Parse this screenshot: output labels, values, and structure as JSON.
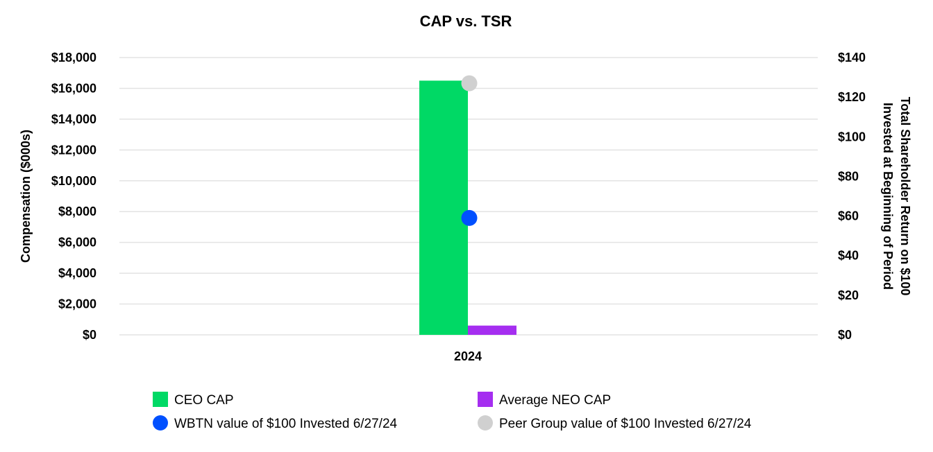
{
  "chart_data": {
    "type": "bar",
    "title": "CAP vs. TSR",
    "categories": [
      "2024"
    ],
    "ylabel": "Compensation ($000s)",
    "ylabel_right": [
      "Total Shareholder Return on $100",
      "Invested at Beginning of Period"
    ],
    "ylim": [
      0,
      18000
    ],
    "ylim_right": [
      0,
      140
    ],
    "y_ticks": [
      "$0",
      "$2,000",
      "$4,000",
      "$6,000",
      "$8,000",
      "$10,000",
      "$12,000",
      "$14,000",
      "$16,000",
      "$18,000"
    ],
    "y_ticks_right": [
      "$0",
      "$20",
      "$40",
      "$60",
      "$80",
      "$100",
      "$120",
      "$140"
    ],
    "grid": true,
    "legend_position": "bottom",
    "series": [
      {
        "name": "CEO CAP",
        "kind": "bar",
        "axis": "left",
        "color": "#00d965",
        "values": [
          16500
        ]
      },
      {
        "name": "Average NEO CAP",
        "kind": "bar",
        "axis": "left",
        "color": "#a52ef0",
        "values": [
          600
        ]
      },
      {
        "name": "WBTN value of $100 Invested 6/27/24",
        "kind": "point",
        "axis": "right",
        "color": "#0050ff",
        "values": [
          59
        ]
      },
      {
        "name": "Peer Group value of $100 Invested 6/27/24",
        "kind": "point",
        "axis": "right",
        "color": "#d0d0d0",
        "values": [
          127
        ]
      }
    ]
  }
}
